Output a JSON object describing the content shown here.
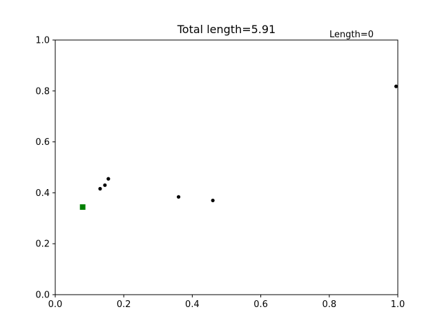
{
  "chart_data": {
    "type": "scatter",
    "title": "Total length=5.91",
    "annotation": "Length=0",
    "xlabel": "",
    "ylabel": "",
    "xlim": [
      0,
      1
    ],
    "ylim": [
      0,
      1
    ],
    "x_ticks": [
      0.0,
      0.2,
      0.4,
      0.6,
      0.8,
      1.0
    ],
    "y_ticks": [
      0.0,
      0.2,
      0.4,
      0.6,
      0.8,
      1.0
    ],
    "x_tick_labels": [
      "0.0",
      "0.2",
      "0.4",
      "0.6",
      "0.8",
      "1.0"
    ],
    "y_tick_labels": [
      "0.0",
      "0.2",
      "0.4",
      "0.6",
      "0.8",
      "1.0"
    ],
    "grid": false,
    "series": [
      {
        "marker": "circle",
        "color": "#000000",
        "points": [
          {
            "x": 0.131,
            "y": 0.416
          },
          {
            "x": 0.145,
            "y": 0.43
          },
          {
            "x": 0.155,
            "y": 0.455
          },
          {
            "x": 0.36,
            "y": 0.384
          },
          {
            "x": 0.46,
            "y": 0.37
          },
          {
            "x": 0.995,
            "y": 0.818
          }
        ]
      },
      {
        "marker": "square",
        "color": "#008000",
        "points": [
          {
            "x": 0.08,
            "y": 0.344
          }
        ]
      }
    ]
  }
}
